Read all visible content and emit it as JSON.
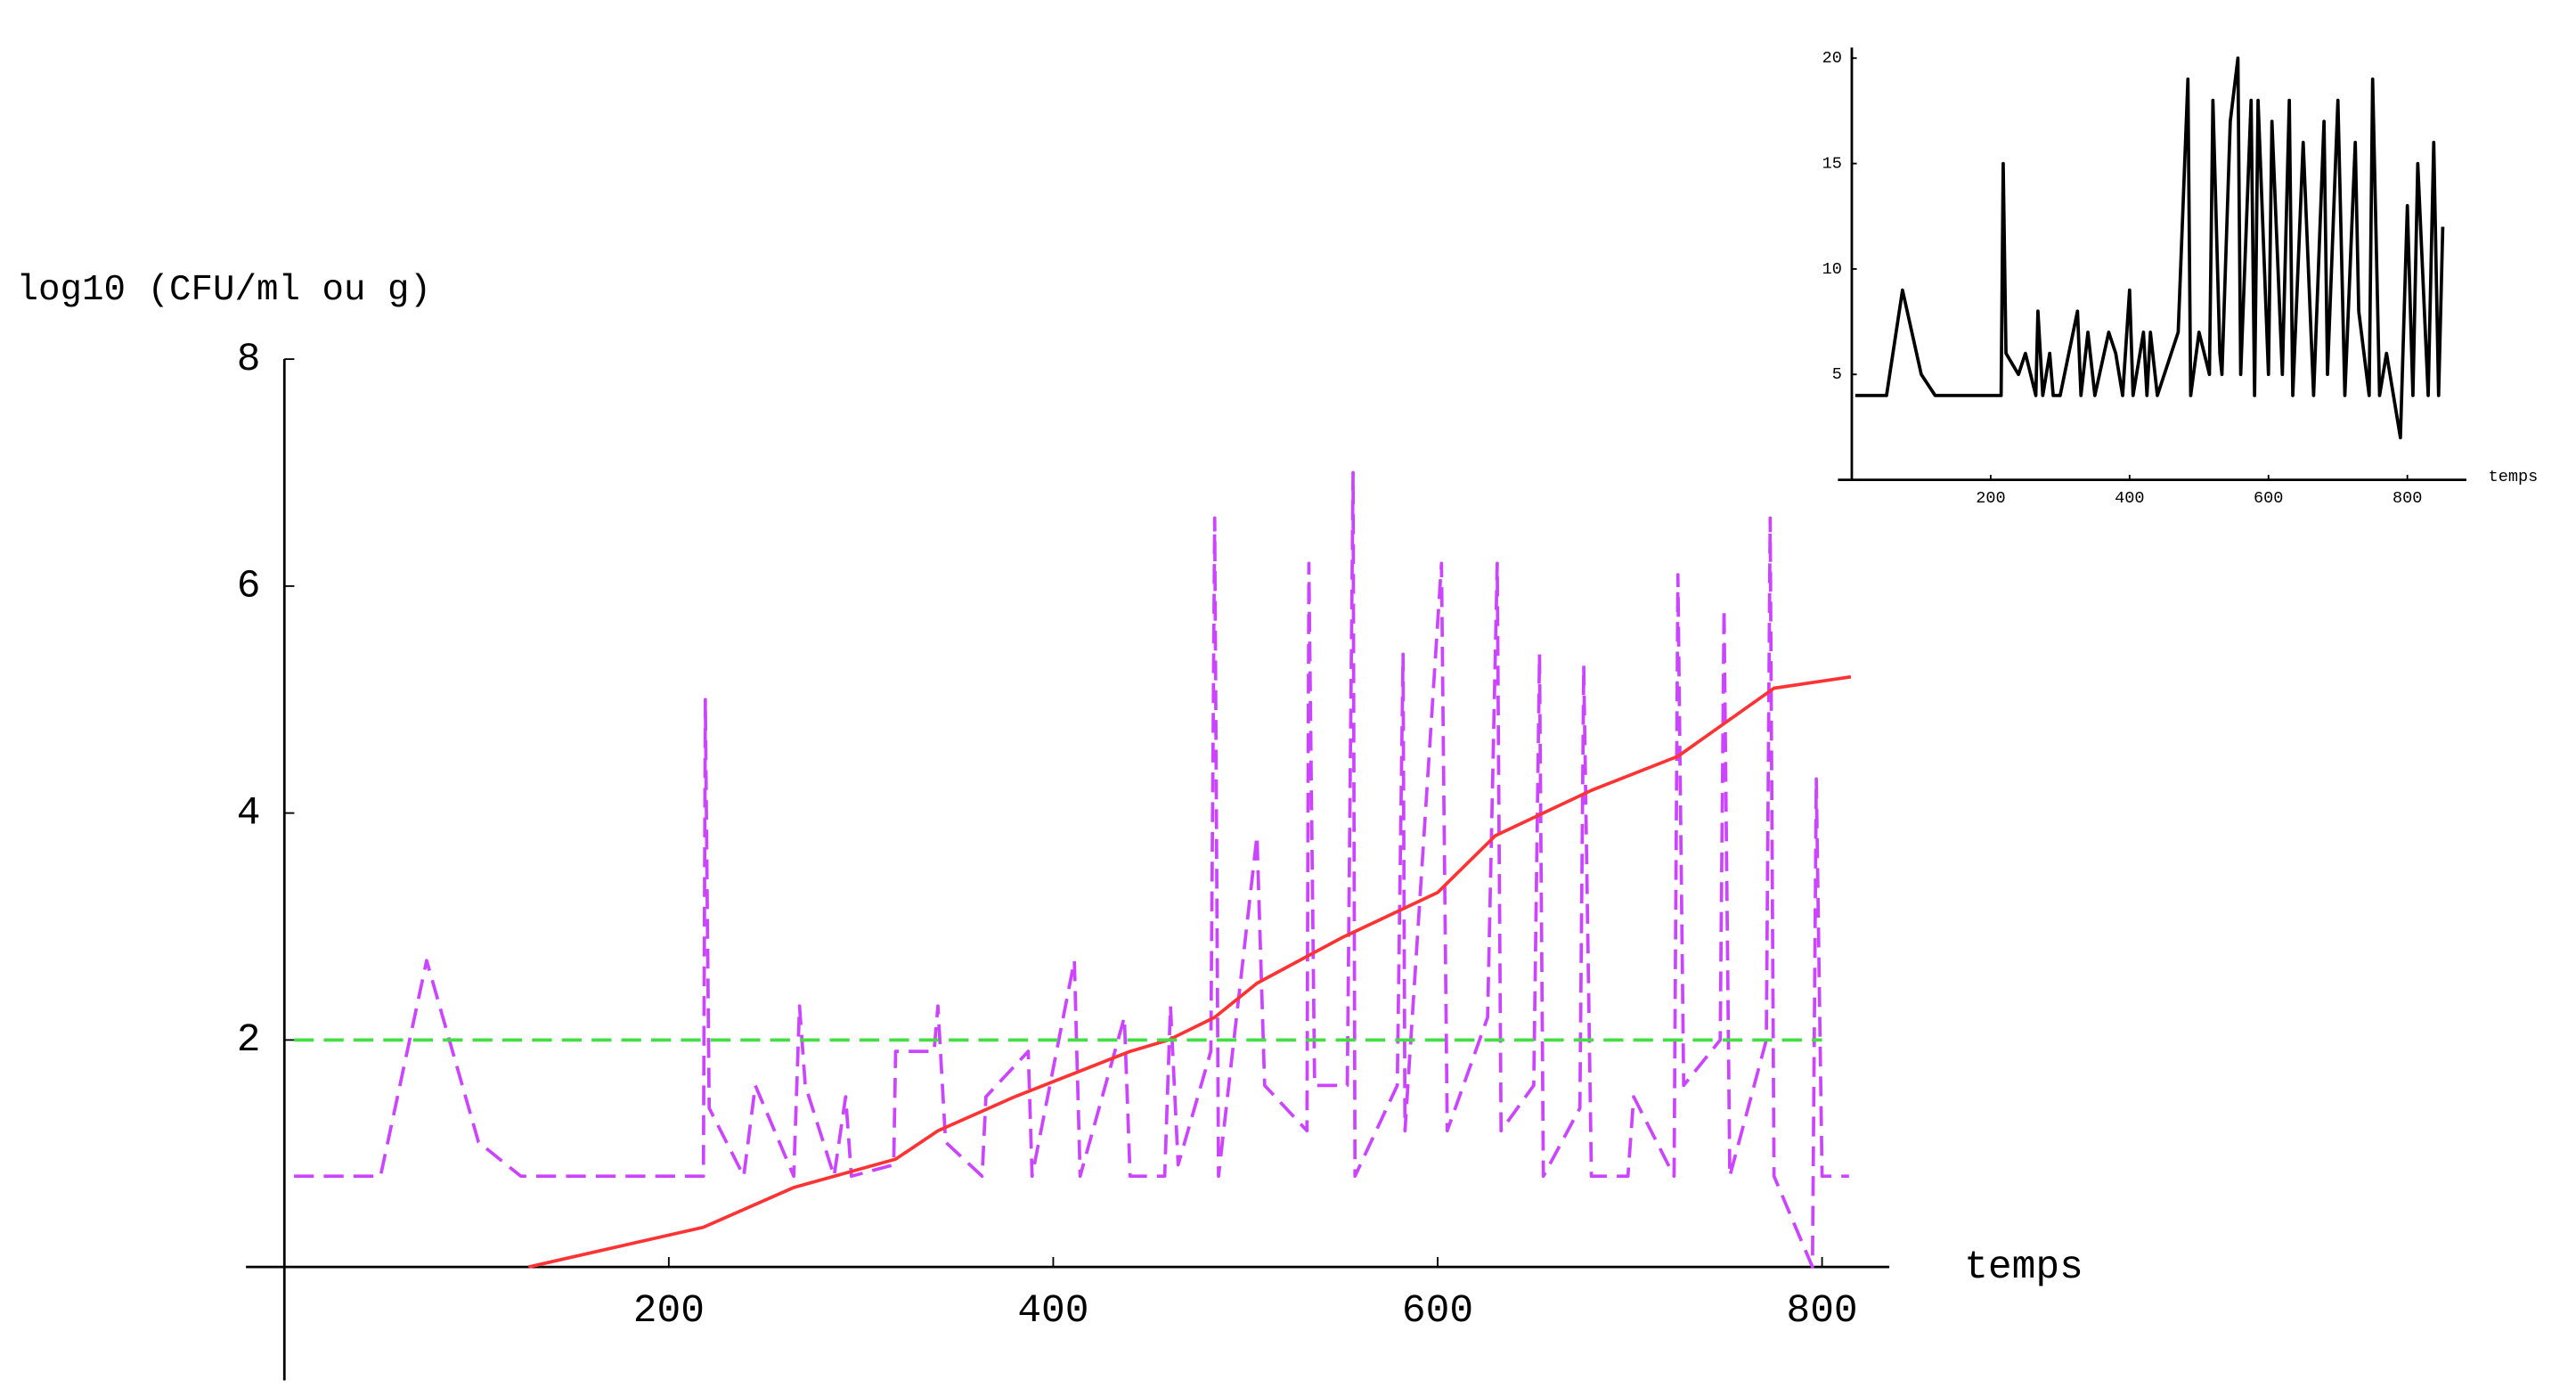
{
  "chart_data": [
    {
      "type": "line",
      "x_label": "temps",
      "y_label": "log10 (CFU/ml ou g)",
      "xlim": [
        -20,
        835
      ],
      "ylim": [
        -1,
        8
      ],
      "xticks": [
        200,
        400,
        600,
        800
      ],
      "yticks": [
        2,
        4,
        6,
        8
      ],
      "series": [
        {
          "color": "#cc44ff",
          "dash": true,
          "x": [
            5,
            50,
            74,
            101,
            123,
            218,
            219,
            221,
            239,
            245,
            265,
            268,
            271,
            286,
            292,
            295,
            317,
            318,
            338,
            340,
            344,
            363,
            365,
            387,
            389,
            411,
            414,
            437,
            440,
            458,
            461,
            465,
            482,
            484,
            486,
            506,
            510,
            532,
            533,
            536,
            553,
            556,
            557,
            579,
            582,
            583,
            602,
            605,
            626,
            631,
            633,
            650,
            653,
            655,
            674,
            676,
            680,
            699,
            702,
            723,
            725,
            728,
            747,
            749,
            752,
            771,
            773,
            775,
            795,
            797,
            800,
            814
          ],
          "values": [
            0.8,
            0.8,
            2.7,
            1.1,
            0.8,
            0.8,
            5.0,
            1.4,
            0.8,
            1.6,
            0.8,
            2.3,
            1.6,
            0.8,
            1.5,
            0.8,
            0.9,
            1.9,
            1.9,
            2.3,
            1.1,
            0.8,
            1.5,
            1.9,
            0.8,
            2.7,
            0.8,
            2.2,
            0.8,
            0.8,
            2.3,
            0.9,
            1.9,
            6.6,
            0.8,
            3.8,
            1.6,
            1.2,
            6.2,
            1.6,
            1.6,
            7.0,
            0.8,
            1.6,
            5.4,
            1.2,
            6.2,
            1.2,
            2.2,
            6.2,
            1.2,
            1.6,
            5.4,
            0.8,
            1.4,
            5.3,
            0.8,
            0.8,
            1.5,
            0.8,
            6.1,
            1.6,
            2.0,
            5.8,
            0.8,
            2.0,
            6.6,
            0.8,
            0,
            4.3,
            0.8,
            0.8
          ]
        },
        {
          "color": "#ff3333",
          "dash": false,
          "x": [
            127,
            218,
            265,
            318,
            340,
            380,
            440,
            460,
            484,
            506,
            550,
            600,
            630,
            680,
            725,
            775,
            815
          ],
          "values": [
            0,
            0.35,
            0.7,
            0.95,
            1.2,
            1.5,
            1.9,
            2.0,
            2.2,
            2.5,
            2.9,
            3.3,
            3.8,
            4.2,
            4.5,
            5.1,
            5.2
          ]
        },
        {
          "color": "#44dd44",
          "dash": true,
          "x": [
            5,
            800
          ],
          "values": [
            2,
            2
          ]
        }
      ]
    },
    {
      "type": "line",
      "x_label": "temps",
      "xlim": [
        -20,
        885
      ],
      "ylim": [
        0,
        20.5
      ],
      "xticks": [
        200,
        400,
        600,
        800
      ],
      "yticks": [
        5,
        10,
        15,
        20
      ],
      "series": [
        {
          "color": "#000000",
          "dash": false,
          "x": [
            5,
            50,
            73,
            100,
            120,
            215,
            218,
            222,
            240,
            250,
            265,
            268,
            275,
            285,
            290,
            300,
            325,
            330,
            340,
            350,
            370,
            380,
            390,
            400,
            405,
            420,
            425,
            430,
            440,
            460,
            470,
            484,
            488,
            500,
            515,
            520,
            530,
            533,
            545,
            556,
            560,
            575,
            580,
            585,
            600,
            605,
            620,
            630,
            635,
            650,
            665,
            680,
            685,
            700,
            710,
            725,
            730,
            745,
            750,
            760,
            770,
            780,
            790,
            800,
            808,
            815,
            830,
            838,
            845,
            851
          ],
          "values": [
            4,
            4,
            9,
            5,
            4,
            4,
            15,
            6,
            5,
            6,
            4,
            8,
            4,
            6,
            4,
            4,
            8,
            4,
            7,
            4,
            7,
            6,
            4,
            9,
            4,
            7,
            4,
            7,
            4,
            6,
            7,
            19,
            4,
            7,
            5,
            18,
            6,
            5,
            17,
            20,
            5,
            18,
            4,
            18,
            5,
            17,
            5,
            18,
            4,
            16,
            4,
            17,
            5,
            18,
            4,
            16,
            8,
            4,
            19,
            4,
            6,
            4,
            2,
            13,
            4,
            15,
            4,
            16,
            4,
            12
          ]
        }
      ]
    }
  ]
}
